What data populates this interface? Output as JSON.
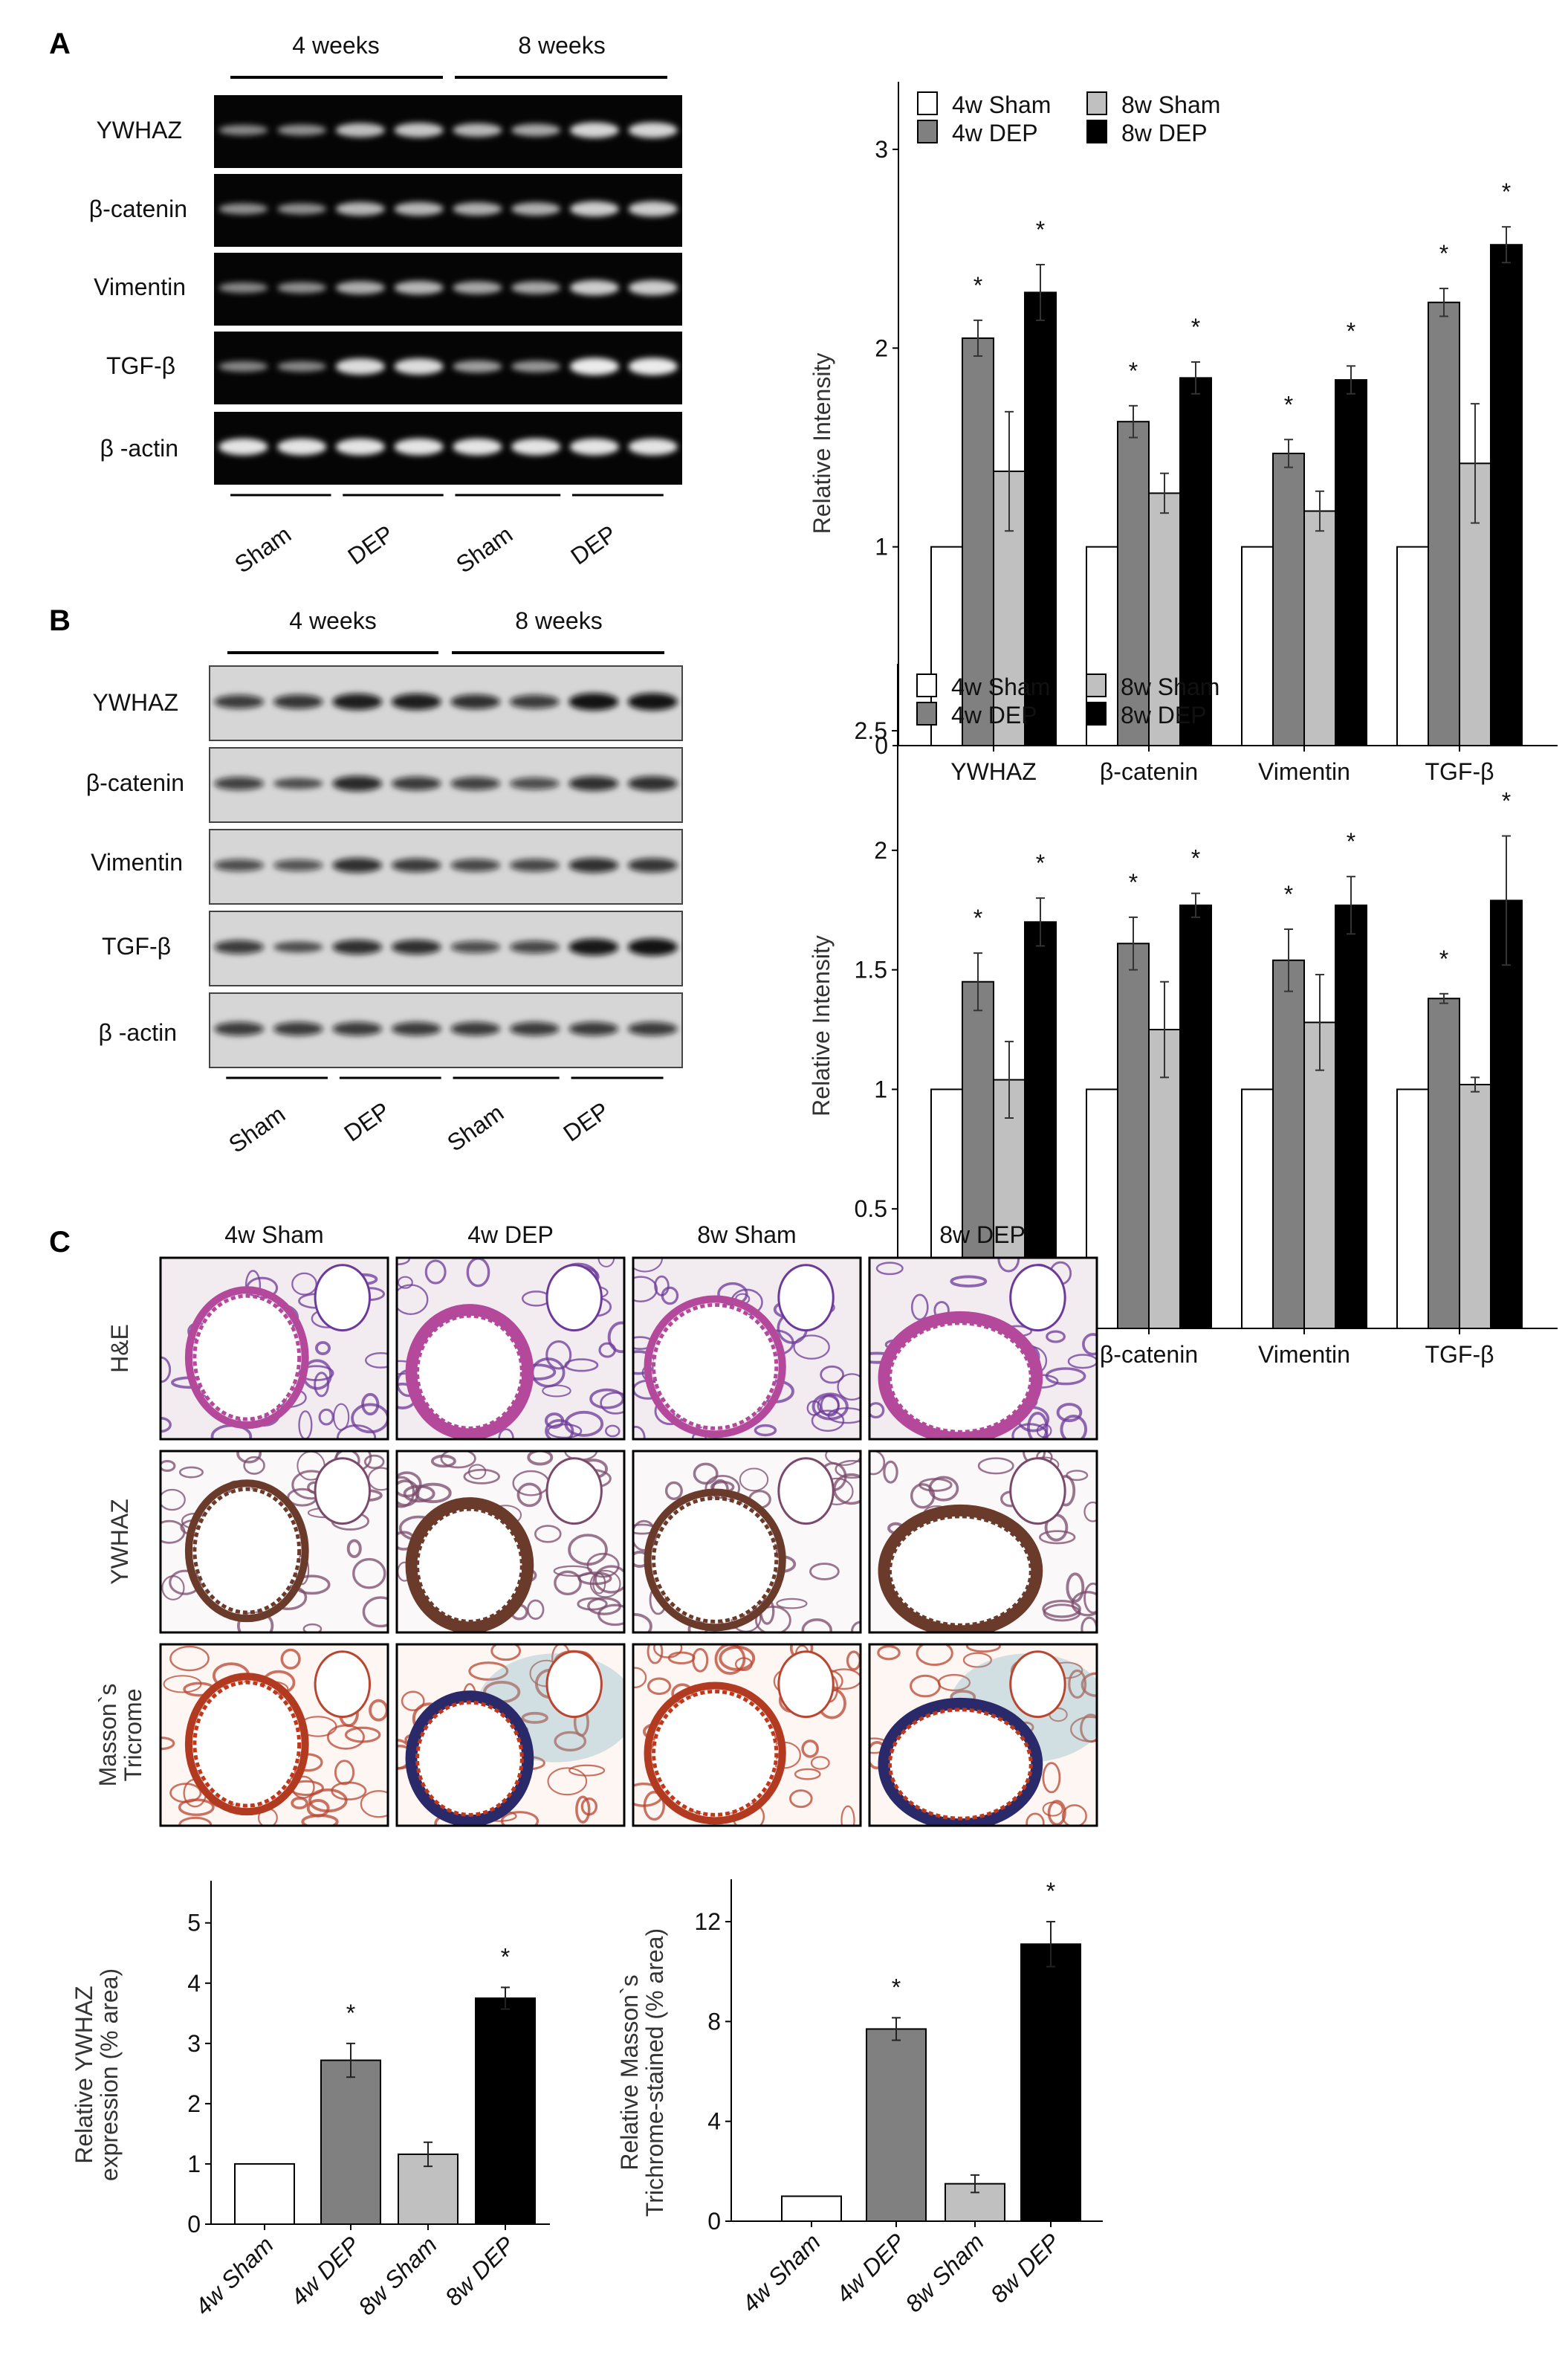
{
  "panel_labels": {
    "a": "A",
    "b": "B",
    "c": "C"
  },
  "gel_a": {
    "time_labels": [
      "4 weeks",
      "8 weeks"
    ],
    "rows": [
      "YWHAZ",
      "β-catenin",
      "Vimentin",
      "TGF-β",
      "β -actin"
    ],
    "group_labels": [
      "Sham",
      "DEP",
      "Sham",
      "DEP"
    ]
  },
  "gel_b": {
    "time_labels": [
      "4 weeks",
      "8 weeks"
    ],
    "rows": [
      "YWHAZ",
      "β-catenin",
      "Vimentin",
      "TGF-β",
      "β -actin"
    ],
    "group_labels": [
      "Sham",
      "DEP",
      "Sham",
      "DEP"
    ]
  },
  "histology": {
    "columns": [
      "4w Sham",
      "4w DEP",
      "8w Sham",
      "8w DEP"
    ],
    "rows": [
      {
        "line1": "H&E",
        "line2": ""
      },
      {
        "line1": "YWHAZ",
        "line2": ""
      },
      {
        "line1": "Masson`s",
        "line2": "Tricrome"
      }
    ]
  },
  "chart_data": [
    {
      "type": "bar",
      "panel": "A",
      "categories": [
        "YWHAZ",
        "β-catenin",
        "Vimentin",
        "TGF-β"
      ],
      "series": [
        {
          "name": "4w Sham",
          "color": "#ffffff",
          "values": [
            1,
            1,
            1,
            1
          ],
          "errors": [
            0,
            0,
            0,
            0
          ],
          "significant": [
            false,
            false,
            false,
            false
          ]
        },
        {
          "name": "4w DEP",
          "color": "#808080",
          "values": [
            2.05,
            1.63,
            1.47,
            2.23
          ],
          "errors": [
            0.09,
            0.08,
            0.07,
            0.07
          ],
          "significant": [
            true,
            true,
            true,
            true
          ]
        },
        {
          "name": "8w Sham",
          "color": "#c0c0c0",
          "values": [
            1.38,
            1.27,
            1.18,
            1.42
          ],
          "errors": [
            0.3,
            0.1,
            0.1,
            0.3
          ],
          "significant": [
            false,
            false,
            false,
            false
          ]
        },
        {
          "name": "8w DEP",
          "color": "#000000",
          "values": [
            2.28,
            1.85,
            1.84,
            2.52
          ],
          "errors": [
            0.14,
            0.08,
            0.07,
            0.09
          ],
          "significant": [
            true,
            true,
            true,
            true
          ]
        }
      ],
      "significance_marker": "*",
      "ylabel": "Relative Intensity",
      "xlabel": "",
      "ylim": [
        0,
        3.34
      ],
      "yticks": [
        "0",
        "1",
        "2",
        "3"
      ],
      "legend": "top-left"
    },
    {
      "type": "bar",
      "panel": "B",
      "categories": [
        "YWHAZ",
        "β-catenin",
        "Vimentin",
        "TGF-β"
      ],
      "series": [
        {
          "name": "4w Sham",
          "color": "#ffffff",
          "values": [
            1,
            1,
            1,
            1
          ],
          "errors": [
            0,
            0,
            0,
            0
          ],
          "significant": [
            false,
            false,
            false,
            false
          ]
        },
        {
          "name": "4w DEP",
          "color": "#808080",
          "values": [
            1.45,
            1.61,
            1.54,
            1.38
          ],
          "errors": [
            0.12,
            0.11,
            0.13,
            0.02
          ],
          "significant": [
            true,
            true,
            true,
            true
          ]
        },
        {
          "name": "8w Sham",
          "color": "#c0c0c0",
          "values": [
            1.04,
            1.25,
            1.28,
            1.02
          ],
          "errors": [
            0.16,
            0.2,
            0.2,
            0.03
          ],
          "significant": [
            false,
            false,
            false,
            false
          ]
        },
        {
          "name": "8w DEP",
          "color": "#000000",
          "values": [
            1.7,
            1.77,
            1.77,
            1.79
          ],
          "errors": [
            0.1,
            0.05,
            0.12,
            0.27
          ],
          "significant": [
            true,
            true,
            true,
            true
          ]
        }
      ],
      "significance_marker": "*",
      "ylabel": "Relative Intensity",
      "xlabel": "",
      "ylim": [
        0,
        2.78
      ],
      "yticks": [
        "0",
        "0.5",
        "1",
        "1.5",
        "2",
        "2.5"
      ],
      "legend": "top-left"
    },
    {
      "type": "bar",
      "panel": "C-left",
      "categories": [
        "4w Sham",
        "4w DEP",
        "8w Sham",
        "8w DEP"
      ],
      "colors": [
        "#ffffff",
        "#808080",
        "#c0c0c0",
        "#000000"
      ],
      "values": [
        1,
        2.72,
        1.16,
        3.75
      ],
      "errors": [
        0,
        0.28,
        0.2,
        0.18
      ],
      "significant": [
        false,
        true,
        false,
        true
      ],
      "significance_marker": "*",
      "ylabel": [
        "Relative YWHAZ",
        "expression (% area)"
      ],
      "xlabel": "",
      "ylim": [
        0,
        5.7
      ],
      "yticks": [
        "0",
        "1",
        "2",
        "3",
        "4",
        "5"
      ]
    },
    {
      "type": "bar",
      "panel": "C-right",
      "categories": [
        "4w Sham",
        "4w DEP",
        "8w Sham",
        "8w DEP"
      ],
      "colors": [
        "#ffffff",
        "#808080",
        "#c0c0c0",
        "#000000"
      ],
      "values": [
        1,
        7.7,
        1.5,
        11.1
      ],
      "errors": [
        0,
        0.45,
        0.35,
        0.9
      ],
      "significant": [
        false,
        true,
        false,
        true
      ],
      "significance_marker": "*",
      "ylabel": [
        "Relative Masson`s",
        "Trichrome-stained (% area)"
      ],
      "xlabel": "",
      "ylim": [
        0,
        13.7
      ],
      "yticks": [
        "0",
        "4",
        "8",
        "12"
      ]
    }
  ]
}
